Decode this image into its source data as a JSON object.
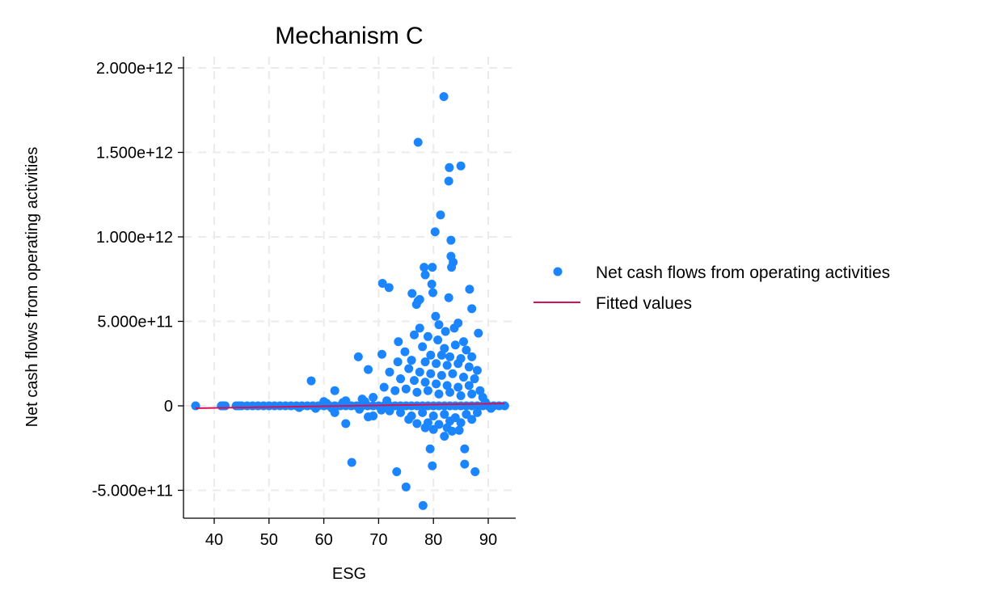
{
  "chart_data": {
    "type": "scatter",
    "title": "Mechanism C",
    "xlabel": "ESG",
    "ylabel": "Net cash flows from operating activities",
    "xlim": [
      34.4,
      95
    ],
    "ylim": [
      -665000000000.0,
      2070000000000.0
    ],
    "x_ticks": [
      40,
      50,
      60,
      70,
      80,
      90
    ],
    "x_tick_labels": [
      "40",
      "50",
      "60",
      "70",
      "80",
      "90"
    ],
    "y_ticks": [
      -500000000000.0,
      0,
      500000000000.0,
      1000000000000.0,
      1500000000000.0,
      2000000000000.0
    ],
    "y_tick_labels": [
      "-5.000e+11",
      "0",
      "5.000e+11",
      "1.000e+12",
      "1.500e+12",
      "2.000e+12"
    ],
    "grid": true,
    "legend_placement": "right",
    "colors": {
      "scatter": "#1a85ff",
      "fit": "#d41159",
      "grid": "#ebebeb"
    },
    "series": [
      {
        "name": "Net cash flows from operating activities",
        "kind": "scatter",
        "points": [
          [
            81.9,
            1830000000000.0
          ],
          [
            77.2,
            1560000000000.0
          ],
          [
            82.9,
            1410000000000.0
          ],
          [
            85.0,
            1420000000000.0
          ],
          [
            82.8,
            1330000000000.0
          ],
          [
            81.3,
            1130000000000.0
          ],
          [
            80.3,
            1030000000000.0
          ],
          [
            83.2,
            980000000000.0
          ],
          [
            83.2,
            885000000000.0
          ],
          [
            83.6,
            850000000000.0
          ],
          [
            83.3,
            820000000000.0
          ],
          [
            78.3,
            820000000000.0
          ],
          [
            79.8,
            820000000000.0
          ],
          [
            78.5,
            775000000000.0
          ],
          [
            70.7,
            725000000000.0
          ],
          [
            71.9,
            700000000000.0
          ],
          [
            76.1,
            665000000000.0
          ],
          [
            77.5,
            630000000000.0
          ],
          [
            79.7,
            720000000000.0
          ],
          [
            79.9,
            670000000000.0
          ],
          [
            86.6,
            690000000000.0
          ],
          [
            82.8,
            640000000000.0
          ],
          [
            87.0,
            575000000000.0
          ],
          [
            80.4,
            530000000000.0
          ],
          [
            76.9,
            600000000000.0
          ],
          [
            77.2,
            620000000000.0
          ],
          [
            66.3,
            290000000000.0
          ],
          [
            70.6,
            305000000000.0
          ],
          [
            68.1,
            215000000000.0
          ],
          [
            57.7,
            148000000000.0
          ],
          [
            62.0,
            90000000000.0
          ],
          [
            73.6,
            380000000000.0
          ],
          [
            77.5,
            460000000000.0
          ],
          [
            83.8,
            460000000000.0
          ],
          [
            88.2,
            430000000000.0
          ],
          [
            84.5,
            490000000000.0
          ],
          [
            81.0,
            480000000000.0
          ],
          [
            82.2,
            440000000000.0
          ],
          [
            76.5,
            420000000000.0
          ],
          [
            79.0,
            410000000000.0
          ],
          [
            80.8,
            390000000000.0
          ],
          [
            85.5,
            380000000000.0
          ],
          [
            78.0,
            350000000000.0
          ],
          [
            82.0,
            340000000000.0
          ],
          [
            84.0,
            360000000000.0
          ],
          [
            86.0,
            330000000000.0
          ],
          [
            74.8,
            320000000000.0
          ],
          [
            79.5,
            300000000000.0
          ],
          [
            81.5,
            300000000000.0
          ],
          [
            83.0,
            290000000000.0
          ],
          [
            85.0,
            280000000000.0
          ],
          [
            87.0,
            290000000000.0
          ],
          [
            76.0,
            270000000000.0
          ],
          [
            78.5,
            260000000000.0
          ],
          [
            80.5,
            250000000000.0
          ],
          [
            82.5,
            240000000000.0
          ],
          [
            84.5,
            250000000000.0
          ],
          [
            86.5,
            230000000000.0
          ],
          [
            88.0,
            210000000000.0
          ],
          [
            73.5,
            260000000000.0
          ],
          [
            75.5,
            220000000000.0
          ],
          [
            77.5,
            200000000000.0
          ],
          [
            79.5,
            190000000000.0
          ],
          [
            81.5,
            180000000000.0
          ],
          [
            83.5,
            190000000000.0
          ],
          [
            85.5,
            170000000000.0
          ],
          [
            87.5,
            160000000000.0
          ],
          [
            72.0,
            200000000000.0
          ],
          [
            74.0,
            160000000000.0
          ],
          [
            76.5,
            150000000000.0
          ],
          [
            78.5,
            140000000000.0
          ],
          [
            80.5,
            130000000000.0
          ],
          [
            82.5,
            120000000000.0
          ],
          [
            84.5,
            110000000000.0
          ],
          [
            86.5,
            120000000000.0
          ],
          [
            88.5,
            90000000000.0
          ],
          [
            71.0,
            110000000000.0
          ],
          [
            73.0,
            90000000000.0
          ],
          [
            75.0,
            100000000000.0
          ],
          [
            77.0,
            80000000000.0
          ],
          [
            79.0,
            90000000000.0
          ],
          [
            81.0,
            70000000000.0
          ],
          [
            83.0,
            80000000000.0
          ],
          [
            85.0,
            60000000000.0
          ],
          [
            87.0,
            70000000000.0
          ],
          [
            89.0,
            50000000000.0
          ],
          [
            69.0,
            50000000000.0
          ],
          [
            67.0,
            40000000000.0
          ],
          [
            64.0,
            30000000000.0
          ],
          [
            60.0,
            25000000000.0
          ],
          [
            78.0,
            -40000000000.0
          ],
          [
            80.0,
            -60000000000.0
          ],
          [
            82.0,
            -50000000000.0
          ],
          [
            84.0,
            -70000000000.0
          ],
          [
            86.0,
            -50000000000.0
          ],
          [
            76.0,
            -60000000000.0
          ],
          [
            74.0,
            -40000000000.0
          ],
          [
            72.0,
            -30000000000.0
          ],
          [
            88.0,
            -40000000000.0
          ],
          [
            79.0,
            -100000000000.0
          ],
          [
            81.0,
            -110000000000.0
          ],
          [
            83.0,
            -90000000000.0
          ],
          [
            85.0,
            -100000000000.0
          ],
          [
            77.0,
            -105000000000.0
          ],
          [
            75.5,
            -80000000000.0
          ],
          [
            87.0,
            -80000000000.0
          ],
          [
            80.0,
            -140000000000.0
          ],
          [
            82.5,
            -130000000000.0
          ],
          [
            78.5,
            -130000000000.0
          ],
          [
            65.1,
            -335000000000.0
          ],
          [
            73.3,
            -390000000000.0
          ],
          [
            75.0,
            -480000000000.0
          ],
          [
            78.1,
            -590000000000.0
          ],
          [
            79.8,
            -355000000000.0
          ],
          [
            79.4,
            -255000000000.0
          ],
          [
            85.7,
            -255000000000.0
          ],
          [
            85.7,
            -345000000000.0
          ],
          [
            87.6,
            -390000000000.0
          ],
          [
            83.4,
            -150000000000.0
          ],
          [
            82.0,
            -180000000000.0
          ],
          [
            84.7,
            -145000000000.0
          ],
          [
            64.0,
            -105000000000.0
          ],
          [
            68.1,
            -65000000000.0
          ],
          [
            69.0,
            -60000000000.0
          ],
          [
            62.0,
            -40000000000.0
          ],
          [
            36.6,
            0
          ],
          [
            41.3,
            0
          ],
          [
            41.6,
            0
          ],
          [
            42.0,
            0
          ],
          [
            44.0,
            0
          ],
          [
            44.5,
            0
          ],
          [
            45.0,
            0
          ],
          [
            46.0,
            0
          ],
          [
            47.0,
            0
          ],
          [
            48.0,
            0
          ],
          [
            49.0,
            0
          ],
          [
            50.0,
            0
          ],
          [
            51.0,
            0
          ],
          [
            52.0,
            0
          ],
          [
            53.0,
            0
          ],
          [
            54.0,
            0
          ],
          [
            55.0,
            0
          ],
          [
            56.0,
            0
          ],
          [
            57.0,
            0
          ],
          [
            58.0,
            0
          ],
          [
            59.0,
            0
          ],
          [
            60.0,
            0
          ],
          [
            61.0,
            0
          ],
          [
            62.0,
            0
          ],
          [
            63.0,
            0
          ],
          [
            64.0,
            0
          ],
          [
            65.0,
            0
          ],
          [
            66.0,
            0
          ],
          [
            67.0,
            0
          ],
          [
            68.0,
            0
          ],
          [
            69.0,
            0
          ],
          [
            70.0,
            0
          ],
          [
            71.0,
            0
          ],
          [
            72.0,
            0
          ],
          [
            73.0,
            0
          ],
          [
            74.0,
            0
          ],
          [
            75.0,
            0
          ],
          [
            76.0,
            0
          ],
          [
            77.0,
            0
          ],
          [
            78.0,
            0
          ],
          [
            79.0,
            0
          ],
          [
            80.0,
            0
          ],
          [
            81.0,
            0
          ],
          [
            82.0,
            0
          ],
          [
            83.0,
            0
          ],
          [
            84.0,
            0
          ],
          [
            85.0,
            0
          ],
          [
            86.0,
            0
          ],
          [
            87.0,
            0
          ],
          [
            88.0,
            0
          ],
          [
            89.0,
            0
          ],
          [
            90.0,
            0
          ],
          [
            91.0,
            0
          ],
          [
            92.0,
            0
          ],
          [
            93.0,
            0
          ],
          [
            55.5,
            -10000000000.0
          ],
          [
            58.5,
            -15000000000.0
          ],
          [
            61.5,
            -15000000000.0
          ],
          [
            66.5,
            -20000000000.0
          ],
          [
            70.5,
            -25000000000.0
          ],
          [
            60.5,
            15000000000.0
          ],
          [
            63.5,
            20000000000.0
          ],
          [
            67.5,
            25000000000.0
          ],
          [
            71.5,
            30000000000.0
          ],
          [
            89.5,
            20000000000.0
          ],
          [
            90.5,
            -15000000000.0
          ]
        ]
      },
      {
        "name": "Fitted values",
        "kind": "line",
        "points": [
          [
            36.6,
            -14000000000.0
          ],
          [
            93.0,
            14000000000.0
          ]
        ]
      }
    ]
  }
}
